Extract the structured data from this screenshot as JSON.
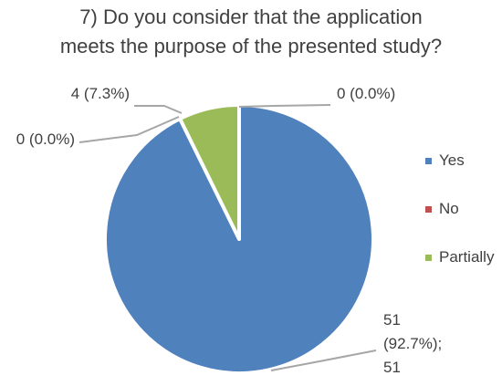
{
  "chart_data": {
    "type": "pie",
    "title_lines": [
      "7) Do you consider that the application",
      "meets the purpose of the presented study?"
    ],
    "slices": [
      {
        "name": "Yes",
        "value": 51,
        "label_lines": [
          "51",
          "(92.7%);",
          "51"
        ],
        "color": "#4F81BD"
      },
      {
        "name": "No",
        "value": 0,
        "label_lines": [
          "0 (0.0%)"
        ],
        "color": "#C0504D"
      },
      {
        "name": "Partially",
        "value": 4,
        "label_lines": [
          "4 (7.3%)"
        ],
        "color": "#9BBB59"
      },
      {
        "name": "",
        "value": 0,
        "label_lines": [
          "0 (0.0%)"
        ],
        "color": "#8064A2"
      }
    ],
    "legend": {
      "placement": "right",
      "items": [
        "Yes",
        "No",
        "Partially"
      ]
    }
  }
}
